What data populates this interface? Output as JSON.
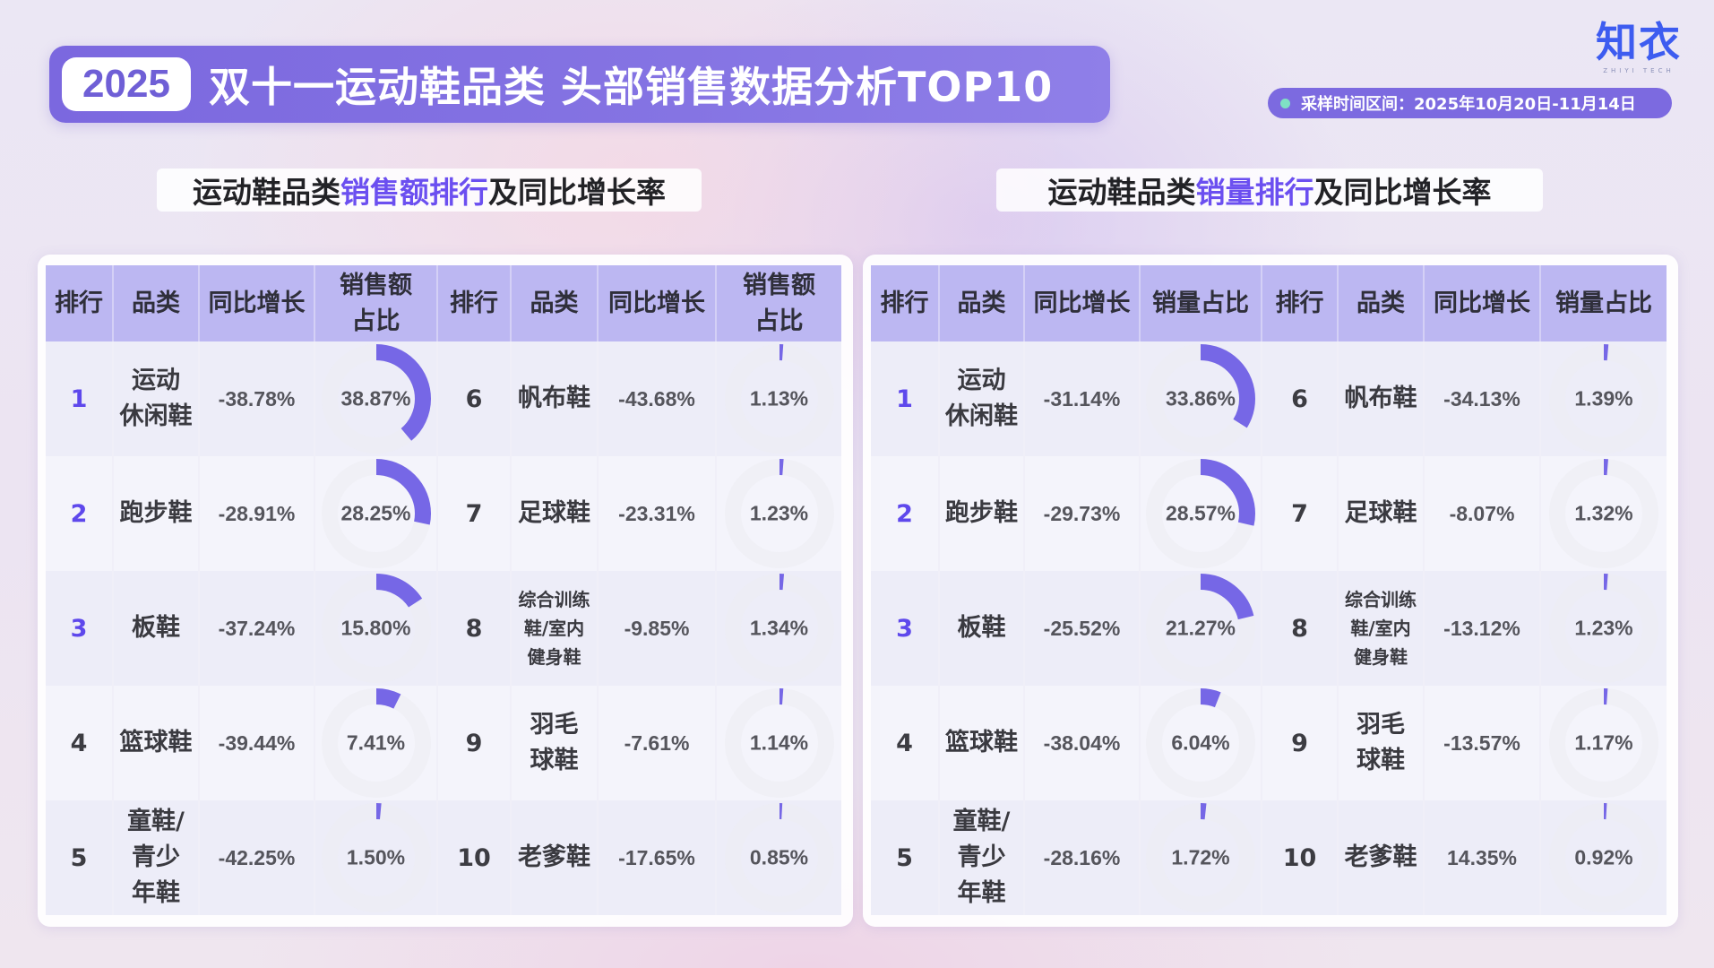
{
  "header": {
    "year": "2025",
    "title": "双十一运动鞋品类 头部销售数据分析TOP10",
    "logo": "知衣",
    "logo_sub": "ZHIYI TECH",
    "date_range": "采样时间区间：2025年10月20日-11月14日"
  },
  "colors": {
    "accent": "#7b68df",
    "highlight_text": "#6b4ff0",
    "table_header": "#bcb7f2",
    "donut_arc": "#7667e6",
    "donut_track": "#ececf3",
    "date_dot": "#7fe0c4",
    "logo": "#3d5cf0"
  },
  "left": {
    "title_pre": "运动鞋品类",
    "title_hl": "销售额排行",
    "title_post": "及同比增长率",
    "columns": [
      "排行",
      "品类",
      "同比增长",
      "销售额占比",
      "排行",
      "品类",
      "同比增长",
      "销售额占比"
    ],
    "col_share_line1": "销售额",
    "col_share_line2": "占比",
    "rows": [
      {
        "rank": "1",
        "category": "运动休闲鞋",
        "cat_l1": "运动",
        "cat_l2": "休闲鞋",
        "yoy": "-38.78%",
        "share": "38.87%",
        "share_value": 38.87
      },
      {
        "rank": "2",
        "category": "跑步鞋",
        "cat_l1": "跑步鞋",
        "cat_l2": "",
        "yoy": "-28.91%",
        "share": "28.25%",
        "share_value": 28.25
      },
      {
        "rank": "3",
        "category": "板鞋",
        "cat_l1": "板鞋",
        "cat_l2": "",
        "yoy": "-37.24%",
        "share": "15.80%",
        "share_value": 15.8
      },
      {
        "rank": "4",
        "category": "篮球鞋",
        "cat_l1": "篮球鞋",
        "cat_l2": "",
        "yoy": "-39.44%",
        "share": "7.41%",
        "share_value": 7.41
      },
      {
        "rank": "5",
        "category": "童鞋/青少年鞋",
        "cat_l1": "童鞋/",
        "cat_l2": "青少",
        "cat_l3": "年鞋",
        "yoy": "-42.25%",
        "share": "1.50%",
        "share_value": 1.5
      },
      {
        "rank": "6",
        "category": "帆布鞋",
        "cat_l1": "帆布鞋",
        "cat_l2": "",
        "yoy": "-43.68%",
        "share": "1.13%",
        "share_value": 1.13
      },
      {
        "rank": "7",
        "category": "足球鞋",
        "cat_l1": "足球鞋",
        "cat_l2": "",
        "yoy": "-23.31%",
        "share": "1.23%",
        "share_value": 1.23
      },
      {
        "rank": "8",
        "category": "综合训练鞋/室内健身鞋",
        "cat_l1": "综合训练",
        "cat_l2": "鞋/室内",
        "cat_l3": "健身鞋",
        "yoy": "-9.85%",
        "share": "1.34%",
        "share_value": 1.34
      },
      {
        "rank": "9",
        "category": "羽毛球鞋",
        "cat_l1": "羽毛",
        "cat_l2": "球鞋",
        "yoy": "-7.61%",
        "share": "1.14%",
        "share_value": 1.14
      },
      {
        "rank": "10",
        "category": "老爹鞋",
        "cat_l1": "老爹鞋",
        "cat_l2": "",
        "yoy": "-17.65%",
        "share": "0.85%",
        "share_value": 0.85
      }
    ]
  },
  "right": {
    "title_pre": "运动鞋品类",
    "title_hl": "销量排行",
    "title_post": "及同比增长率",
    "columns": [
      "排行",
      "品类",
      "同比增长",
      "销量占比",
      "排行",
      "品类",
      "同比增长",
      "销量占比"
    ],
    "rows": [
      {
        "rank": "1",
        "category": "运动休闲鞋",
        "cat_l1": "运动",
        "cat_l2": "休闲鞋",
        "yoy": "-31.14%",
        "share": "33.86%",
        "share_value": 33.86
      },
      {
        "rank": "2",
        "category": "跑步鞋",
        "cat_l1": "跑步鞋",
        "cat_l2": "",
        "yoy": "-29.73%",
        "share": "28.57%",
        "share_value": 28.57
      },
      {
        "rank": "3",
        "category": "板鞋",
        "cat_l1": "板鞋",
        "cat_l2": "",
        "yoy": "-25.52%",
        "share": "21.27%",
        "share_value": 21.27
      },
      {
        "rank": "4",
        "category": "篮球鞋",
        "cat_l1": "篮球鞋",
        "cat_l2": "",
        "yoy": "-38.04%",
        "share": "6.04%",
        "share_value": 6.04
      },
      {
        "rank": "5",
        "category": "童鞋/青少年鞋",
        "cat_l1": "童鞋/",
        "cat_l2": "青少",
        "cat_l3": "年鞋",
        "yoy": "-28.16%",
        "share": "1.72%",
        "share_value": 1.72
      },
      {
        "rank": "6",
        "category": "帆布鞋",
        "cat_l1": "帆布鞋",
        "cat_l2": "",
        "yoy": "-34.13%",
        "share": "1.39%",
        "share_value": 1.39
      },
      {
        "rank": "7",
        "category": "足球鞋",
        "cat_l1": "足球鞋",
        "cat_l2": "",
        "yoy": "-8.07%",
        "share": "1.32%",
        "share_value": 1.32
      },
      {
        "rank": "8",
        "category": "综合训练鞋/室内健身鞋",
        "cat_l1": "综合训练",
        "cat_l2": "鞋/室内",
        "cat_l3": "健身鞋",
        "yoy": "-13.12%",
        "share": "1.23%",
        "share_value": 1.23
      },
      {
        "rank": "9",
        "category": "羽毛球鞋",
        "cat_l1": "羽毛",
        "cat_l2": "球鞋",
        "yoy": "-13.57%",
        "share": "1.17%",
        "share_value": 1.17
      },
      {
        "rank": "10",
        "category": "老爹鞋",
        "cat_l1": "老爹鞋",
        "cat_l2": "",
        "yoy": "14.35%",
        "share": "0.92%",
        "share_value": 0.92
      }
    ]
  },
  "chart_data": [
    {
      "type": "table",
      "title": "运动鞋品类销售额排行及同比增长率",
      "columns": [
        "排行",
        "品类",
        "同比增长",
        "销售额占比"
      ],
      "categories": [
        "运动休闲鞋",
        "跑步鞋",
        "板鞋",
        "篮球鞋",
        "童鞋/青少年鞋",
        "帆布鞋",
        "足球鞋",
        "综合训练鞋/室内健身鞋",
        "羽毛球鞋",
        "老爹鞋"
      ],
      "series": [
        {
          "name": "同比增长(%)",
          "values": [
            -38.78,
            -28.91,
            -37.24,
            -39.44,
            -42.25,
            -43.68,
            -23.31,
            -9.85,
            -7.61,
            -17.65
          ]
        },
        {
          "name": "销售额占比(%)",
          "values": [
            38.87,
            28.25,
            15.8,
            7.41,
            1.5,
            1.13,
            1.23,
            1.34,
            1.14,
            0.85
          ]
        }
      ],
      "share_visual": "donut arc per row (percentage of full circle)"
    },
    {
      "type": "table",
      "title": "运动鞋品类销量排行及同比增长率",
      "columns": [
        "排行",
        "品类",
        "同比增长",
        "销量占比"
      ],
      "categories": [
        "运动休闲鞋",
        "跑步鞋",
        "板鞋",
        "篮球鞋",
        "童鞋/青少年鞋",
        "帆布鞋",
        "足球鞋",
        "综合训练鞋/室内健身鞋",
        "羽毛球鞋",
        "老爹鞋"
      ],
      "series": [
        {
          "name": "同比增长(%)",
          "values": [
            -31.14,
            -29.73,
            -25.52,
            -38.04,
            -28.16,
            -34.13,
            -8.07,
            -13.12,
            -13.57,
            14.35
          ]
        },
        {
          "name": "销量占比(%)",
          "values": [
            33.86,
            28.57,
            21.27,
            6.04,
            1.72,
            1.39,
            1.32,
            1.23,
            1.17,
            0.92
          ]
        }
      ],
      "share_visual": "donut arc per row (percentage of full circle)"
    }
  ]
}
